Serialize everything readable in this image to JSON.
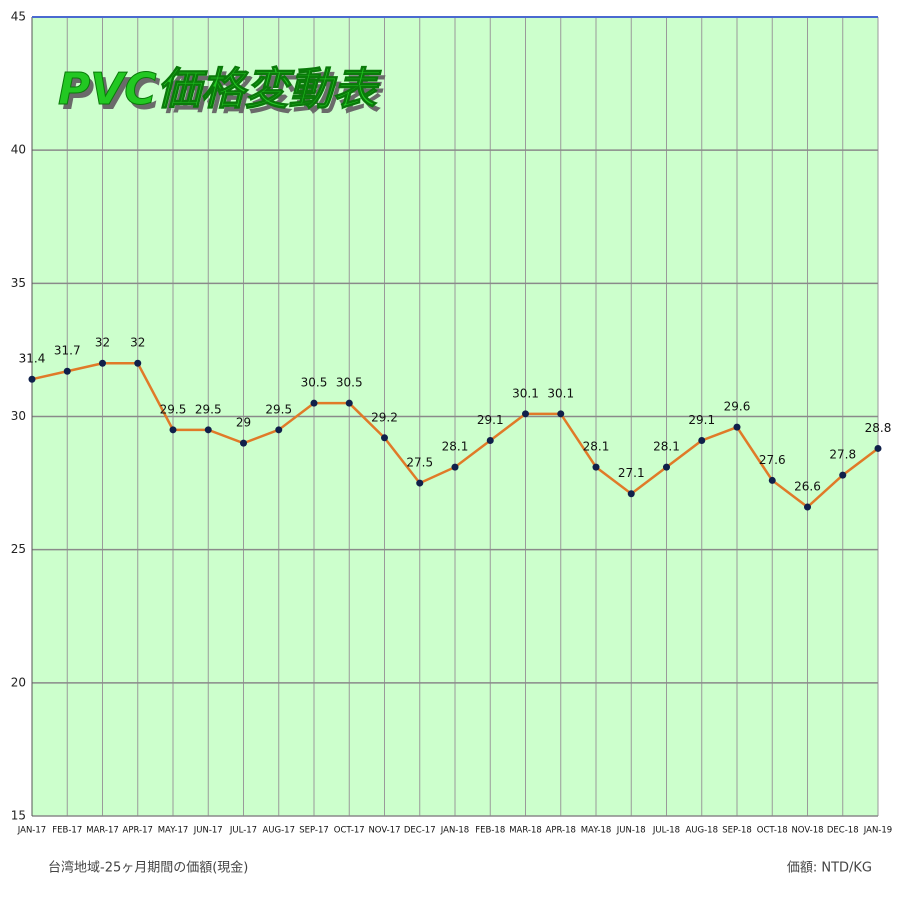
{
  "chart_data": {
    "type": "line",
    "title": "PVC価格変動表",
    "categories": [
      "JAN-17",
      "FEB-17",
      "MAR-17",
      "APR-17",
      "MAY-17",
      "JUN-17",
      "JUL-17",
      "AUG-17",
      "SEP-17",
      "OCT-17",
      "NOV-17",
      "DEC-17",
      "JAN-18",
      "FEB-18",
      "MAR-18",
      "APR-18",
      "MAY-18",
      "JUN-18",
      "JUL-18",
      "AUG-18",
      "SEP-18",
      "OCT-18",
      "NOV-18",
      "DEC-18",
      "JAN-19"
    ],
    "series": [
      {
        "color": "#e07a28",
        "marker_color": "#10204a",
        "values": [
          31.4,
          31.7,
          32,
          32,
          29.5,
          29.5,
          29,
          29.5,
          30.5,
          30.5,
          29.2,
          27.5,
          28.1,
          29.1,
          30.1,
          30.1,
          28.1,
          27.1,
          28.1,
          29.1,
          29.6,
          27.6,
          26.6,
          27.8,
          28.8
        ]
      }
    ],
    "ylim": [
      15,
      45
    ],
    "yticks": [
      15,
      20,
      25,
      30,
      35,
      40,
      45
    ],
    "grid": true,
    "footnote_left": "台湾地域-25ヶ月期間の価額(現金)",
    "footnote_right": "価額: NTD/KG"
  }
}
